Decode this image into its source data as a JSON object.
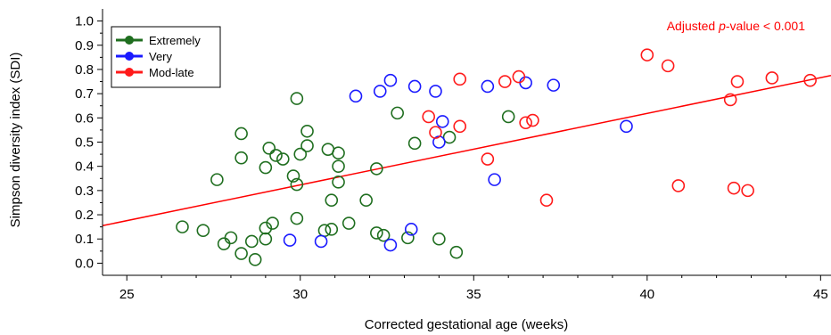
{
  "chart_data": {
    "type": "scatter",
    "xlabel": "Corrected gestational age (weeks)",
    "ylabel": "Simpson diversity index (SDI)",
    "xlim": [
      24.3,
      45.3
    ],
    "ylim": [
      -0.05,
      1.05
    ],
    "x_ticks": [
      25,
      30,
      35,
      40,
      45
    ],
    "y_ticks": [
      0.0,
      0.1,
      0.2,
      0.3,
      0.4,
      0.5,
      0.6,
      0.7,
      0.8,
      0.9,
      1.0
    ],
    "y_tick_labels": [
      "0.0",
      "0.1",
      "0.2",
      "0.3",
      "0.4",
      "0.5",
      "0.6",
      "0.7",
      "0.8",
      "0.9",
      "1.0"
    ],
    "grid": false,
    "legend": "top-left",
    "annotation": {
      "prefix": "Adjusted ",
      "italic": "p",
      "suffix": "-value < 0.001",
      "color": "#ff0000"
    },
    "fit_line": {
      "x": [
        24.3,
        45.3
      ],
      "y": [
        0.155,
        0.775
      ],
      "color": "#ff0000"
    },
    "series": [
      {
        "name": "Extremely",
        "color": "#1f6e1f",
        "x": [
          26.6,
          27.2,
          27.6,
          27.8,
          28.0,
          28.3,
          28.3,
          28.3,
          28.6,
          28.7,
          29.0,
          29.0,
          29.0,
          29.1,
          29.2,
          29.3,
          29.5,
          29.8,
          29.9,
          29.9,
          29.9,
          30.0,
          30.2,
          30.2,
          30.7,
          30.8,
          30.9,
          30.9,
          31.1,
          31.1,
          31.1,
          31.4,
          31.9,
          32.2,
          32.2,
          32.4,
          32.8,
          33.1,
          33.3,
          34.0,
          34.3,
          34.5,
          36.0
        ],
        "y": [
          0.15,
          0.135,
          0.345,
          0.08,
          0.105,
          0.535,
          0.435,
          0.04,
          0.09,
          0.015,
          0.395,
          0.145,
          0.1,
          0.475,
          0.165,
          0.445,
          0.43,
          0.36,
          0.68,
          0.325,
          0.185,
          0.45,
          0.485,
          0.545,
          0.135,
          0.47,
          0.26,
          0.14,
          0.455,
          0.4,
          0.335,
          0.165,
          0.26,
          0.39,
          0.125,
          0.115,
          0.62,
          0.105,
          0.495,
          0.1,
          0.52,
          0.045,
          0.605
        ]
      },
      {
        "name": "Very",
        "color": "#1a1aff",
        "x": [
          29.7,
          30.6,
          31.6,
          32.3,
          32.6,
          32.6,
          33.2,
          33.3,
          33.9,
          34.0,
          34.1,
          35.4,
          35.6,
          36.5,
          37.3,
          39.4
        ],
        "y": [
          0.095,
          0.09,
          0.69,
          0.71,
          0.755,
          0.075,
          0.14,
          0.73,
          0.71,
          0.5,
          0.585,
          0.73,
          0.345,
          0.745,
          0.735,
          0.565
        ]
      },
      {
        "name": "Mod-late",
        "color": "#ff1a1a",
        "x": [
          33.7,
          33.9,
          34.6,
          34.6,
          35.4,
          35.9,
          36.3,
          36.5,
          36.7,
          37.1,
          40.0,
          40.6,
          40.9,
          42.4,
          42.5,
          42.6,
          42.9,
          43.6,
          44.7
        ],
        "y": [
          0.605,
          0.54,
          0.76,
          0.565,
          0.43,
          0.75,
          0.77,
          0.58,
          0.59,
          0.26,
          0.86,
          0.815,
          0.32,
          0.675,
          0.31,
          0.75,
          0.3,
          0.765,
          0.755
        ]
      }
    ]
  }
}
